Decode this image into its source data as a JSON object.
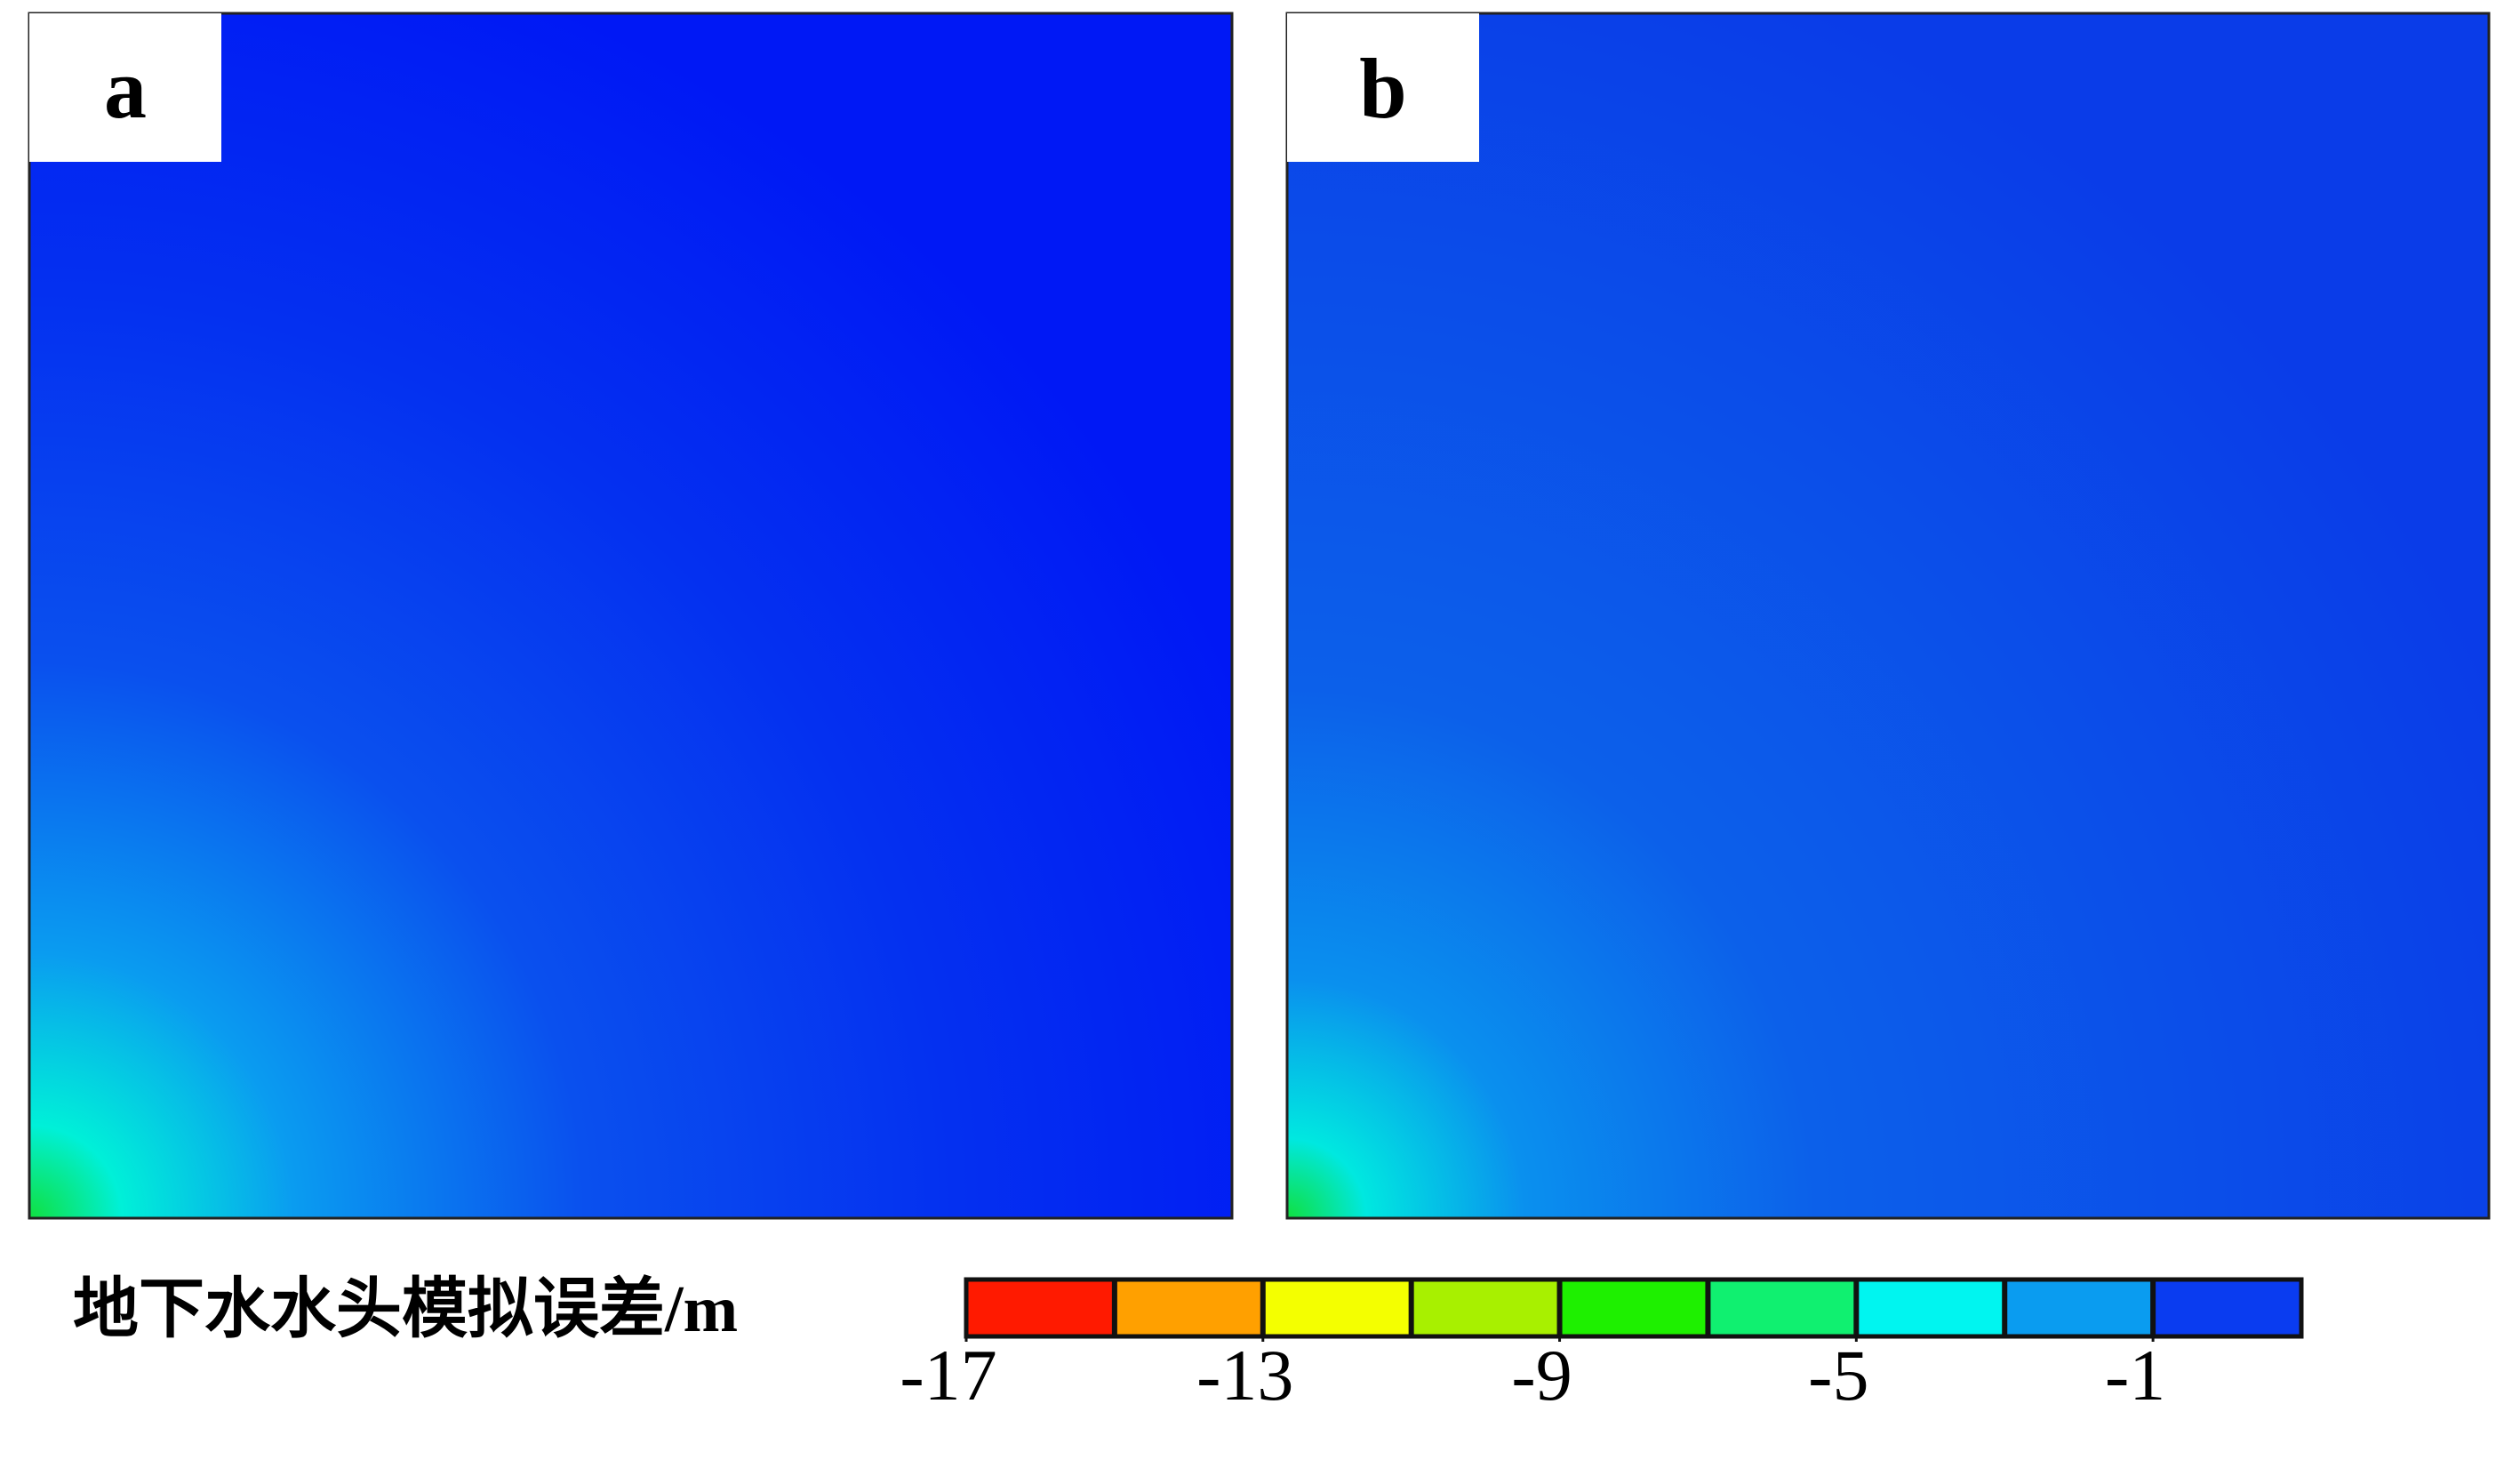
{
  "panels": [
    {
      "label": "a"
    },
    {
      "label": "b"
    }
  ],
  "colorbar": {
    "title": "地下水水头模拟误差/m",
    "lim": [
      -17,
      1
    ],
    "ticks": [
      -17,
      -13,
      -9,
      -5,
      -1
    ],
    "colors": [
      "#ff1a00",
      "#ffa000",
      "#f4ff00",
      "#a8f000",
      "#1ef000",
      "#10f070",
      "#00f5f0",
      "#0a9cf0",
      "#0a3cf0"
    ]
  }
}
